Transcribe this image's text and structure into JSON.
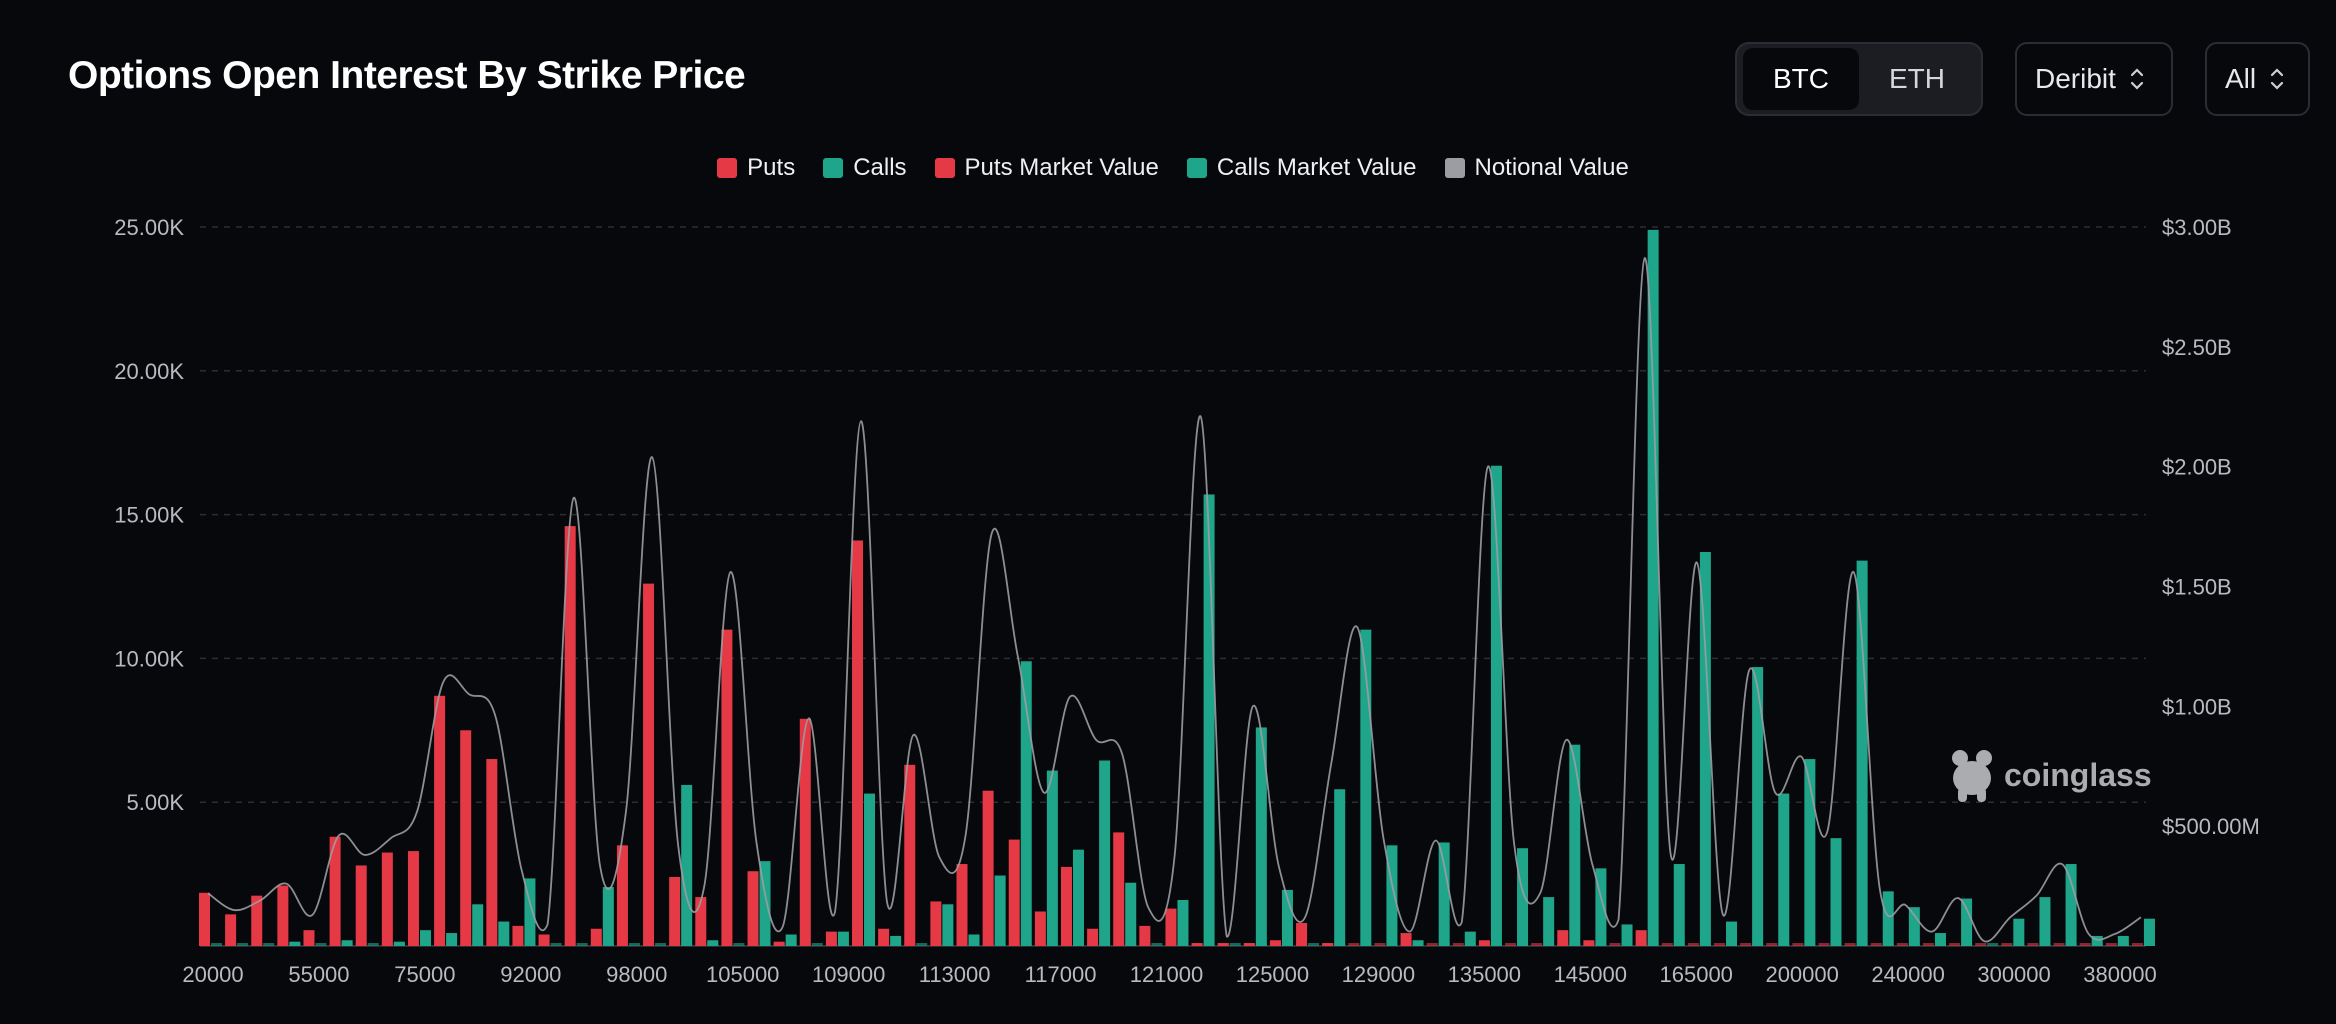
{
  "title": "Options Open Interest By Strike Price",
  "toggle": {
    "options": [
      "BTC",
      "ETH"
    ],
    "active": "BTC"
  },
  "exchange_select": {
    "value": "Deribit"
  },
  "range_select": {
    "value": "All"
  },
  "watermark": "coinglass",
  "colors": {
    "puts": "#e63946",
    "calls": "#1fa68a",
    "notional": "#9c9ca3",
    "grid": "#2c2e34",
    "background": "#07080b"
  },
  "chart_data": {
    "type": "bar",
    "legend": [
      {
        "name": "Puts",
        "color": "#e63946"
      },
      {
        "name": "Calls",
        "color": "#1fa68a"
      },
      {
        "name": "Puts Market Value",
        "color": "#e63946"
      },
      {
        "name": "Calls Market Value",
        "color": "#1fa68a"
      },
      {
        "name": "Notional Value",
        "color": "#9c9ca3"
      }
    ],
    "x_tick_labels": [
      "20000",
      "55000",
      "75000",
      "92000",
      "98000",
      "105000",
      "109000",
      "113000",
      "117000",
      "121000",
      "125000",
      "129000",
      "135000",
      "145000",
      "165000",
      "200000",
      "240000",
      "300000",
      "380000"
    ],
    "y_left": {
      "ticks": [
        "5.00K",
        "10.00K",
        "15.00K",
        "20.00K",
        "25.00K"
      ],
      "ylim": [
        0,
        25000
      ]
    },
    "y_right": {
      "ticks": [
        "$500.00M",
        "$1.00B",
        "$1.50B",
        "$2.00B",
        "$2.50B",
        "$3.00B"
      ],
      "ylim": [
        0,
        3000000000
      ]
    },
    "series": [
      {
        "name": "Puts",
        "values": [
          1850,
          1100,
          1750,
          2100,
          550,
          3800,
          2800,
          3250,
          3300,
          8700,
          7500,
          6500,
          700,
          400,
          14600,
          600,
          3500,
          12600,
          2400,
          1700,
          11000,
          2600,
          150,
          7900,
          500,
          14100,
          600,
          6300,
          1550,
          2850,
          5400,
          3700,
          1200,
          2750,
          600,
          3950,
          700,
          1300,
          100,
          100,
          100,
          200,
          800,
          100,
          0,
          0,
          450,
          0,
          0,
          200,
          0,
          0,
          550,
          200,
          0,
          550,
          0,
          0,
          0,
          0,
          0,
          0,
          0,
          0,
          0,
          0,
          0,
          0,
          0,
          0,
          0,
          0,
          0,
          0,
          0
        ]
      },
      {
        "name": "Calls",
        "values": [
          0,
          0,
          0,
          150,
          0,
          200,
          0,
          150,
          550,
          450,
          1450,
          850,
          2350,
          0,
          0,
          2050,
          0,
          0,
          5600,
          200,
          0,
          2950,
          400,
          0,
          500,
          5300,
          350,
          0,
          1450,
          400,
          2450,
          9900,
          6100,
          3350,
          6450,
          2200,
          0,
          1600,
          15700,
          0,
          7600,
          1950,
          0,
          5450,
          11000,
          3500,
          200,
          3600,
          500,
          16700,
          3400,
          1700,
          7000,
          2700,
          750,
          24900,
          2850,
          13700,
          850,
          9700,
          5300,
          6500,
          3750,
          13400,
          1900,
          1350,
          450,
          1650,
          0,
          950,
          1700,
          2850,
          350,
          350,
          950
        ]
      }
    ],
    "notional_value_approx_usd": [
      220000000,
      150000000,
      190000000,
      260000000,
      130000000,
      460000000,
      380000000,
      450000000,
      560000000,
      1100000000,
      1050000000,
      960000000,
      320000000,
      90000000,
      1870000000,
      340000000,
      560000000,
      2040000000,
      420000000,
      250000000,
      1560000000,
      430000000,
      80000000,
      950000000,
      140000000,
      2190000000,
      180000000,
      880000000,
      370000000,
      460000000,
      1720000000,
      1210000000,
      640000000,
      1040000000,
      860000000,
      800000000,
      160000000,
      370000000,
      2210000000,
      40000000,
      1000000000,
      330000000,
      120000000,
      760000000,
      1330000000,
      450000000,
      60000000,
      440000000,
      100000000,
      2000000000,
      430000000,
      220000000,
      860000000,
      340000000,
      110000000,
      2870000000,
      380000000,
      1600000000,
      130000000,
      1150000000,
      640000000,
      790000000,
      480000000,
      1560000000,
      240000000,
      170000000,
      60000000,
      200000000,
      20000000,
      120000000,
      210000000,
      340000000,
      50000000,
      50000000,
      120000000
    ]
  }
}
